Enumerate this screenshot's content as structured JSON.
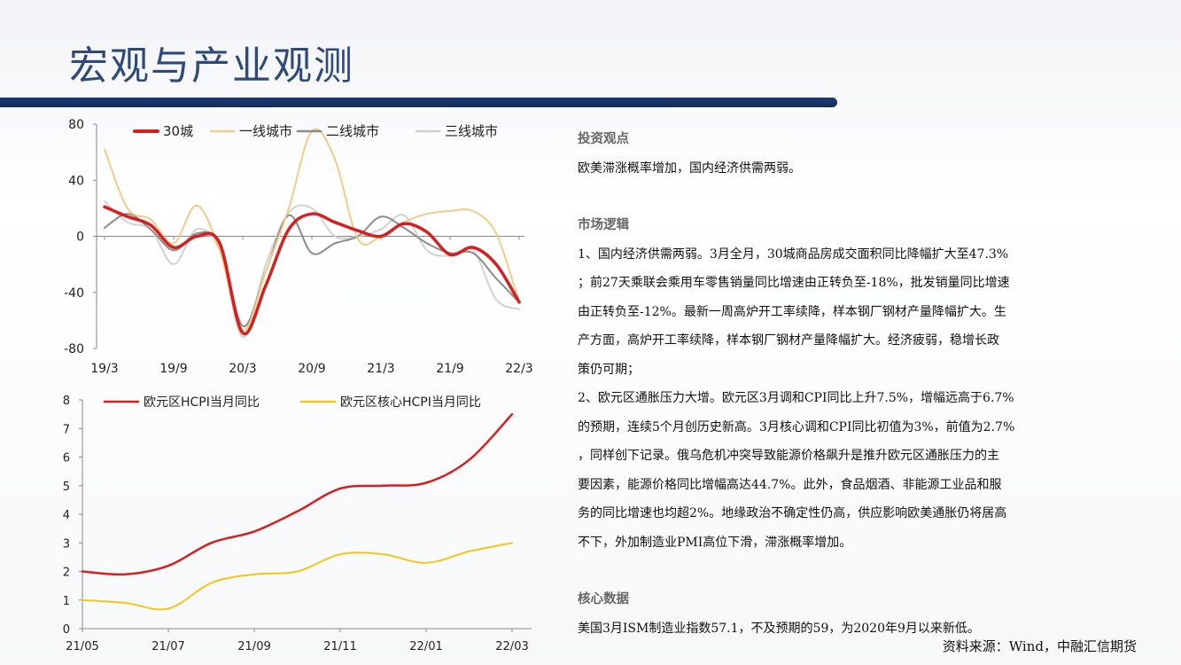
{
  "header": {
    "title": "宏观与产业观测"
  },
  "text": {
    "s1_head": "投资观点",
    "s1_body": "欧美滞涨概率增加，国内经济供需两弱。",
    "s2_head": "市场逻辑",
    "s2_lines": [
      "1、国内经济供需两弱。3月全月，30城商品房成交面积同比降幅扩大至47.3%",
      "；前27天乘联会乘用车零售销量同比增速由正转负至-18%，批发销量同比增速",
      "由正转负至-12%。最新一周高炉开工率续降，样本钢厂钢材产量降幅扩大。生",
      "产方面，高炉开工率续降，样本钢厂钢材产量降幅扩大。经济疲弱，稳增长政",
      "策仍可期；",
      "2、欧元区通胀压力大增。欧元区3月调和CPI同比上升7.5%，增幅远高于6.7%",
      "的预期，连续5个月创历史新高。3月核心调和CPI同比初值为3%，前值为2.7%",
      "，同样创下记录。俄乌危机冲突导致能源价格飙升是推升欧元区通胀压力的主",
      "要因素，能源价格同比增幅高达44.7%。此外，食品烟酒、非能源工业品和服",
      "务的同比增速也均超2%。地缘政治不确定性仍高，供应影响欧美通胀仍将居高",
      "不下，外加制造业PMI高位下滑，滞涨概率增加。"
    ],
    "s3_head": "核心数据",
    "s3_body": "美国3月ISM制造业指数57.1，不及预期的59，为2020年9月以来新低。"
  },
  "source": "资料来源：Wind，中融汇信期货",
  "chart_data": [
    {
      "type": "line",
      "x_tick_labels": [
        "19/3",
        "19/9",
        "20/3",
        "20/9",
        "21/3",
        "21/9",
        "22/3"
      ],
      "x": [
        "19/3",
        "19/5",
        "19/7",
        "19/9",
        "19/11",
        "20/1",
        "20/3",
        "20/5",
        "20/7",
        "20/9",
        "20/11",
        "21/1",
        "21/3",
        "21/5",
        "21/7",
        "21/9",
        "21/11",
        "22/1",
        "22/3"
      ],
      "ylim": [
        -80,
        80
      ],
      "yticks": [
        80,
        40,
        0,
        -40,
        -80
      ],
      "legend_position": "top",
      "grid": false,
      "series": [
        {
          "name": "30城",
          "color": "#d42020",
          "values": [
            21,
            14,
            8,
            -8,
            0,
            -5,
            -69,
            -35,
            5,
            16,
            10,
            4,
            0,
            9,
            3,
            -13,
            -8,
            -20,
            -47
          ]
        },
        {
          "name": "一线城市",
          "color": "#f1cb8a",
          "values": [
            62,
            20,
            12,
            -5,
            22,
            -10,
            -67,
            -25,
            20,
            75,
            55,
            -2,
            0,
            10,
            16,
            18,
            18,
            2,
            -47
          ]
        },
        {
          "name": "二线城市",
          "color": "#8c8c8c",
          "values": [
            6,
            16,
            5,
            -10,
            2,
            -5,
            -64,
            -25,
            15,
            -12,
            -5,
            0,
            14,
            6,
            -5,
            -12,
            -12,
            -30,
            -47
          ]
        },
        {
          "name": "三线城市",
          "color": "#d2d2d2",
          "values": [
            25,
            10,
            5,
            -20,
            5,
            -10,
            -72,
            -20,
            17,
            20,
            0,
            0,
            5,
            15,
            -10,
            -14,
            -10,
            -45,
            -52
          ]
        }
      ]
    },
    {
      "type": "line",
      "x_tick_labels": [
        "21/05",
        "21/07",
        "21/09",
        "21/11",
        "22/01",
        "22/03"
      ],
      "x": [
        "21/05",
        "21/06",
        "21/07",
        "21/08",
        "21/09",
        "21/10",
        "21/11",
        "21/12",
        "22/01",
        "22/02",
        "22/03"
      ],
      "ylim": [
        0,
        8
      ],
      "yticks": [
        8,
        7,
        6,
        5,
        4,
        3,
        2,
        1,
        0
      ],
      "legend_position": "top",
      "grid": false,
      "series": [
        {
          "name": "欧元区HCPI当月同比",
          "color": "#d42020",
          "values": [
            2.0,
            1.9,
            2.2,
            3.0,
            3.4,
            4.1,
            4.9,
            5.0,
            5.1,
            5.9,
            7.5
          ]
        },
        {
          "name": "欧元区核心HCPI当月同比",
          "color": "#f5c518",
          "values": [
            1.0,
            0.9,
            0.7,
            1.6,
            1.9,
            2.0,
            2.6,
            2.6,
            2.3,
            2.7,
            3.0
          ]
        }
      ]
    }
  ]
}
